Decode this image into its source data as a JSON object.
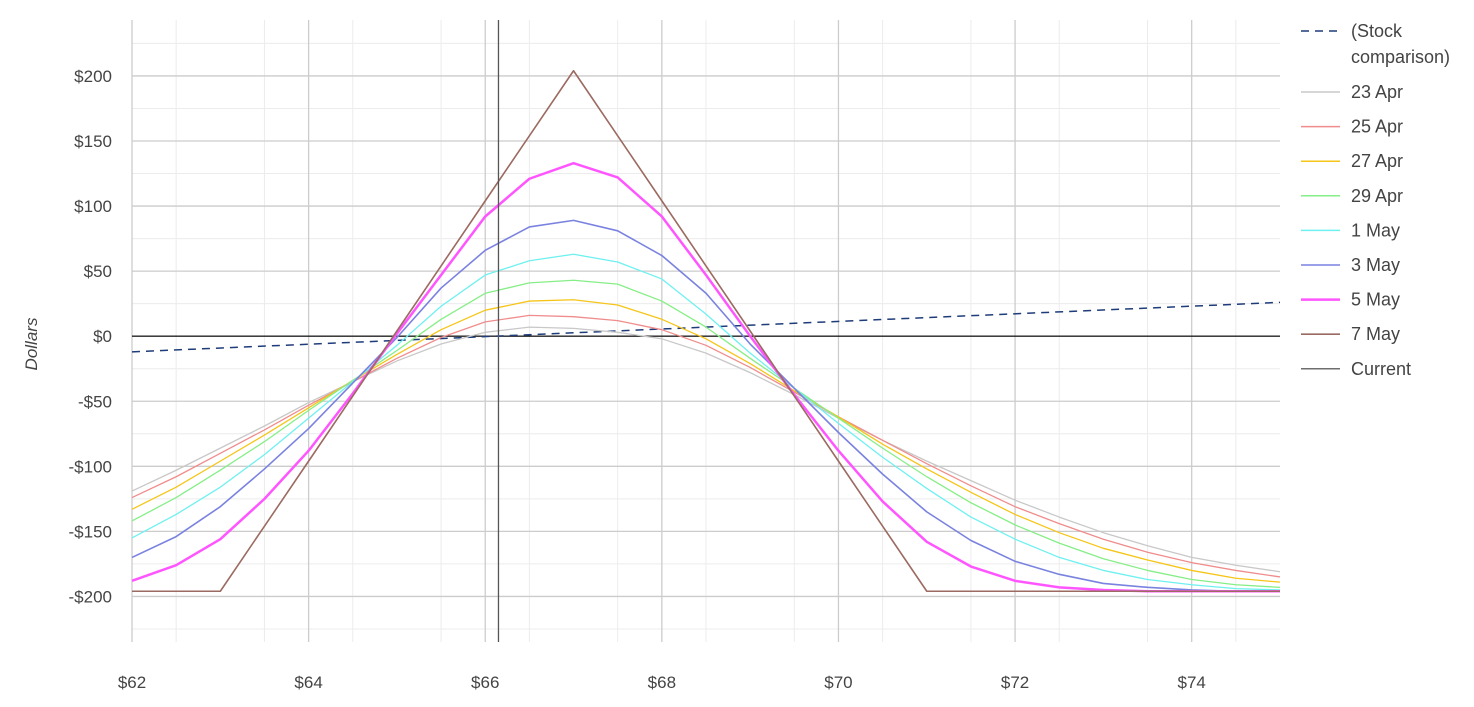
{
  "chart_data": {
    "type": "line",
    "title": "",
    "xlabel": "",
    "ylabel": "Dollars",
    "xlim": [
      62,
      75
    ],
    "ylim": [
      -235,
      243
    ],
    "grid": true,
    "legend_position": "right",
    "x_ticks": [
      {
        "value": 62,
        "label": "$62"
      },
      {
        "value": 64,
        "label": "$64"
      },
      {
        "value": 66,
        "label": "$66"
      },
      {
        "value": 68,
        "label": "$68"
      },
      {
        "value": 70,
        "label": "$70"
      },
      {
        "value": 72,
        "label": "$72"
      },
      {
        "value": 74,
        "label": "$74"
      }
    ],
    "y_ticks": [
      {
        "value": 200,
        "label": "$200"
      },
      {
        "value": 150,
        "label": "$150"
      },
      {
        "value": 100,
        "label": "$100"
      },
      {
        "value": 50,
        "label": "$50"
      },
      {
        "value": 0,
        "label": "$0"
      },
      {
        "value": -50,
        "label": "-$50"
      },
      {
        "value": -100,
        "label": "-$100"
      },
      {
        "value": -150,
        "label": "-$150"
      },
      {
        "value": -200,
        "label": "-$200"
      }
    ],
    "current_price": 66.15,
    "x": [
      62,
      62.5,
      63,
      63.5,
      64,
      64.5,
      65,
      65.5,
      66,
      66.5,
      67,
      67.5,
      68,
      68.5,
      69,
      69.5,
      70,
      70.5,
      71,
      71.5,
      72,
      72.5,
      73,
      73.5,
      74,
      74.5,
      75
    ],
    "stock_comparison": {
      "name": "(Stock comparison)",
      "color": "#1f3c7a",
      "x": [
        62,
        75
      ],
      "values": [
        -12,
        26
      ]
    },
    "series": [
      {
        "name": "23 Apr",
        "color": "#c8c8c8",
        "width": 1.3,
        "values": [
          -119,
          -103,
          -86,
          -69,
          -51,
          -35,
          -19,
          -6,
          3,
          7,
          6,
          3,
          -2,
          -13,
          -28,
          -45,
          -63,
          -80,
          -96,
          -111,
          -126,
          -139,
          -151,
          -161,
          -170,
          -176,
          -181
        ]
      },
      {
        "name": "25 Apr",
        "color": "#f08c8c",
        "width": 1.3,
        "values": [
          -124,
          -108,
          -90,
          -72,
          -53,
          -35,
          -17,
          -1,
          11,
          16,
          15,
          12,
          5,
          -7,
          -24,
          -43,
          -62,
          -80,
          -98,
          -115,
          -131,
          -144,
          -156,
          -166,
          -174,
          -180,
          -185
        ]
      },
      {
        "name": "27 Apr",
        "color": "#f5c518",
        "width": 1.3,
        "values": [
          -133,
          -116,
          -96,
          -76,
          -55,
          -34,
          -14,
          5,
          20,
          27,
          28,
          24,
          13,
          -2,
          -21,
          -42,
          -62,
          -83,
          -102,
          -120,
          -137,
          -151,
          -163,
          -172,
          -180,
          -186,
          -189
        ]
      },
      {
        "name": "29 Apr",
        "color": "#86ee86",
        "width": 1.3,
        "values": [
          -142,
          -124,
          -103,
          -81,
          -57,
          -34,
          -11,
          13,
          33,
          41,
          43,
          40,
          27,
          7,
          -17,
          -40,
          -63,
          -86,
          -108,
          -128,
          -145,
          -159,
          -171,
          -180,
          -187,
          -191,
          -193
        ]
      },
      {
        "name": "1 May",
        "color": "#6ff0f0",
        "width": 1.3,
        "values": [
          -155,
          -137,
          -116,
          -91,
          -63,
          -35,
          -7,
          23,
          47,
          58,
          63,
          57,
          44,
          17,
          -13,
          -40,
          -67,
          -93,
          -117,
          -139,
          -156,
          -170,
          -180,
          -187,
          -191,
          -194,
          -195
        ]
      },
      {
        "name": "3 May",
        "color": "#7a82e0",
        "width": 1.6,
        "values": [
          -170,
          -154,
          -131,
          -102,
          -71,
          -36,
          -1,
          37,
          66,
          84,
          89,
          81,
          62,
          33,
          -6,
          -40,
          -74,
          -106,
          -135,
          -157,
          -173,
          -183,
          -190,
          -193,
          -195,
          -196,
          -196
        ]
      },
      {
        "name": "5 May",
        "color": "#ff55ff",
        "width": 2.5,
        "values": [
          -188,
          -176,
          -156,
          -125,
          -88,
          -44,
          2,
          47,
          92,
          121,
          133,
          122,
          92,
          47,
          0,
          -45,
          -88,
          -127,
          -158,
          -177,
          -188,
          -193,
          -195,
          -196,
          -196,
          -196,
          -196
        ]
      },
      {
        "name": "7 May",
        "color": "#9b6a60",
        "width": 1.6,
        "values": [
          -196,
          -196,
          -196,
          -146,
          -96,
          -46,
          4,
          54,
          104,
          154,
          204,
          154,
          104,
          54,
          4,
          -46,
          -96,
          -146,
          -196,
          -196,
          -196,
          -196,
          -196,
          -196,
          -196,
          -196,
          -196
        ]
      }
    ],
    "current_legend": {
      "name": "Current",
      "color": "#6e6e6e"
    }
  }
}
